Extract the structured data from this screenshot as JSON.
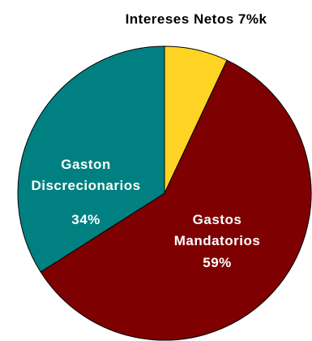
{
  "chart_data": {
    "type": "pie",
    "start_angle_deg": 0,
    "direction": "clockwise",
    "slices": [
      {
        "label": "Intereses Netos",
        "value": 7,
        "text": "7%k",
        "color": "#FFD324",
        "label_color": "#000000"
      },
      {
        "label": "Gastos Mandatorios",
        "value": 59,
        "text": "59%",
        "color": "#7F0000",
        "label_color": "#ffffff"
      },
      {
        "label": "Gaston Discrecionarios",
        "value": 34,
        "text": "34%",
        "color": "#008080",
        "label_color": "#ffffff"
      }
    ],
    "labels": {
      "intereses_netos": "Intereses Netos 7%k",
      "gastos_mandatorios_line1": "Gastos",
      "gastos_mandatorios_line2": "Mandatorios",
      "gastos_mandatorios_pct": "59%",
      "gaston_discrecionarios_line1": "Gaston",
      "gaston_discrecionarios_line2": "Discrecionarios",
      "gaston_discrecionarios_pct": "34%"
    },
    "border_color": "#000000"
  }
}
